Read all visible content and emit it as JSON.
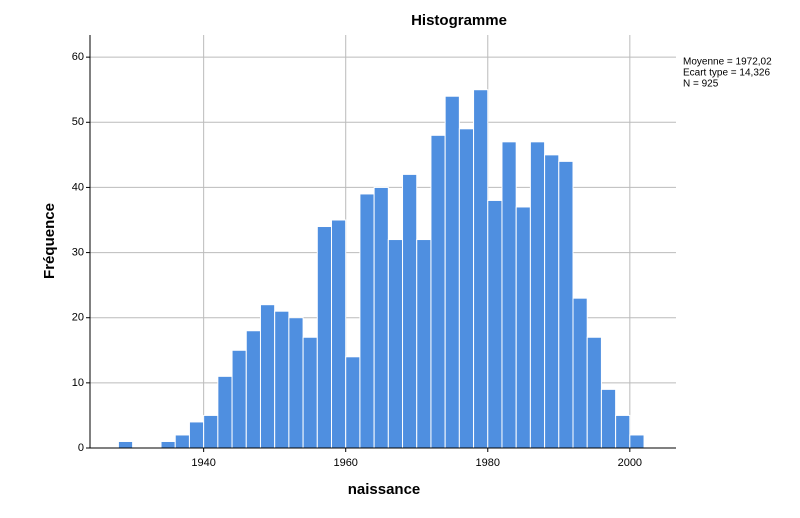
{
  "chart_data": {
    "type": "histogram",
    "title": "Histogramme",
    "x_label": "naissance",
    "y_label": "Fréquence",
    "bins": [
      1928,
      1930,
      1932,
      1934,
      1936,
      1938,
      1940,
      1942,
      1944,
      1946,
      1948,
      1950,
      1952,
      1954,
      1956,
      1958,
      1960,
      1962,
      1964,
      1966,
      1968,
      1970,
      1972,
      1974,
      1976,
      1978,
      1980,
      1982,
      1984,
      1986,
      1988,
      1990,
      1992,
      1994,
      1996,
      1998,
      2000,
      2002
    ],
    "values": [
      1,
      0,
      0,
      1,
      2,
      4,
      5,
      11,
      15,
      18,
      22,
      21,
      20,
      17,
      34,
      35,
      14,
      39,
      40,
      32,
      42,
      32,
      48,
      54,
      49,
      55,
      38,
      47,
      37,
      47,
      45,
      44,
      23,
      17,
      9,
      5,
      2
    ],
    "color": "#4f8fe0",
    "xlim": [
      1924,
      2006.5
    ],
    "ylim": [
      0,
      63.4
    ],
    "xticks": [
      1940,
      1960,
      1980,
      2000
    ],
    "yticks": [
      0,
      10,
      20,
      30,
      40,
      50,
      60
    ],
    "grid": true,
    "stats": [
      "Moyenne = 1972,02",
      "Ecart type = 14,326",
      "N = 925"
    ]
  }
}
